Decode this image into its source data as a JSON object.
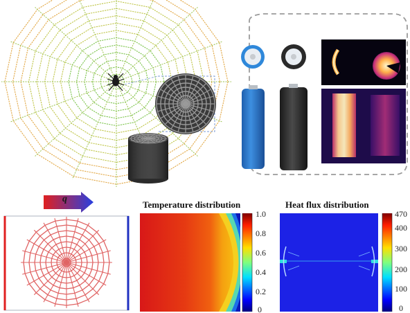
{
  "colors": {
    "web_green": "#6cc04a",
    "web_yellow": "#e8c23a",
    "web_orange": "#e08a3a",
    "battery_blue": "#2f7fd6",
    "battery_dark": "#2a2a2a",
    "disk_red": "#e0666a",
    "line_red": "#e02020",
    "line_blue": "#2030c0"
  },
  "icons": {
    "spider": "spider-icon",
    "arrow": "heat-flow-arrow-icon"
  },
  "flow_panel": {
    "arrow_label": "q"
  },
  "maps": {
    "temperature": {
      "title": "Temperature distribution",
      "ticks": [
        "1.0",
        "0.8",
        "0.6",
        "0.4",
        "0.2",
        "0"
      ]
    },
    "heat_flux": {
      "title": "Heat flux distribution",
      "ticks": [
        "470",
        "400",
        "300",
        "200",
        "100",
        "0"
      ]
    }
  }
}
